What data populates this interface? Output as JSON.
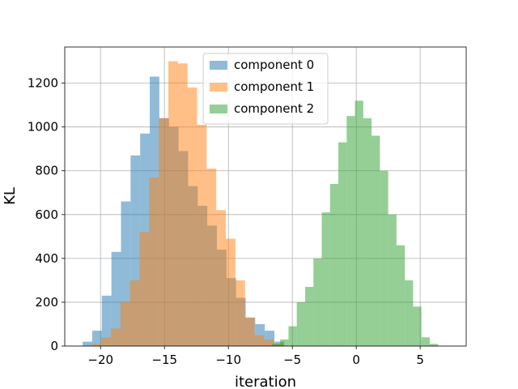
{
  "chart_data": {
    "type": "bar",
    "title": "",
    "xlabel": "iteration",
    "ylabel": "KL",
    "xlim": [
      -22.8,
      8.6
    ],
    "ylim": [
      0,
      1365
    ],
    "xticks": [
      -20,
      -15,
      -10,
      -5,
      0,
      5
    ],
    "xtick_labels": [
      "−20",
      "−15",
      "−10",
      "−5",
      "0",
      "5"
    ],
    "yticks": [
      0,
      200,
      400,
      600,
      800,
      1000,
      1200
    ],
    "ytick_labels": [
      "0",
      "200",
      "400",
      "600",
      "800",
      "1000",
      "1200"
    ],
    "grid": true,
    "legend_position": "upper center",
    "series": [
      {
        "name": "component 0",
        "color": "#1f77b4",
        "opacity": 0.5,
        "bin_edges": [
          -21.4,
          -20.65,
          -19.9,
          -19.15,
          -18.4,
          -17.65,
          -16.9,
          -16.15,
          -15.4,
          -14.65,
          -13.9,
          -13.15,
          -12.4,
          -11.65,
          -10.9,
          -10.15,
          -9.4,
          -8.65,
          -7.9,
          -7.15,
          -6.4,
          -5.65
        ],
        "counts": [
          20,
          70,
          230,
          430,
          660,
          870,
          970,
          1230,
          1040,
          1000,
          890,
          730,
          640,
          550,
          440,
          310,
          220,
          130,
          100,
          70,
          20
        ]
      },
      {
        "name": "component 1",
        "color": "#ff7f0e",
        "opacity": 0.5,
        "bin_edges": [
          -20.7,
          -19.95,
          -19.2,
          -18.45,
          -17.7,
          -16.95,
          -16.2,
          -15.45,
          -14.7,
          -13.95,
          -13.2,
          -12.45,
          -11.7,
          -10.95,
          -10.2,
          -9.45,
          -8.7,
          -7.95,
          -7.2,
          -6.45,
          -5.7
        ],
        "counts": [
          10,
          40,
          80,
          200,
          300,
          520,
          770,
          1040,
          1300,
          1290,
          1180,
          1010,
          810,
          620,
          490,
          300,
          130,
          50,
          30,
          10
        ]
      },
      {
        "name": "component 2",
        "color": "#2ca02c",
        "opacity": 0.5,
        "bin_edges": [
          -6.6,
          -5.95,
          -5.3,
          -4.65,
          -4.0,
          -3.35,
          -2.7,
          -2.05,
          -1.4,
          -0.75,
          -0.1,
          0.55,
          1.2,
          1.85,
          2.5,
          3.15,
          3.8,
          4.45,
          5.1,
          5.75,
          6.4,
          7.05
        ],
        "counts": [
          10,
          30,
          90,
          200,
          270,
          400,
          610,
          740,
          930,
          1050,
          1120,
          1040,
          960,
          800,
          600,
          460,
          300,
          180,
          40,
          10,
          0
        ]
      }
    ]
  }
}
